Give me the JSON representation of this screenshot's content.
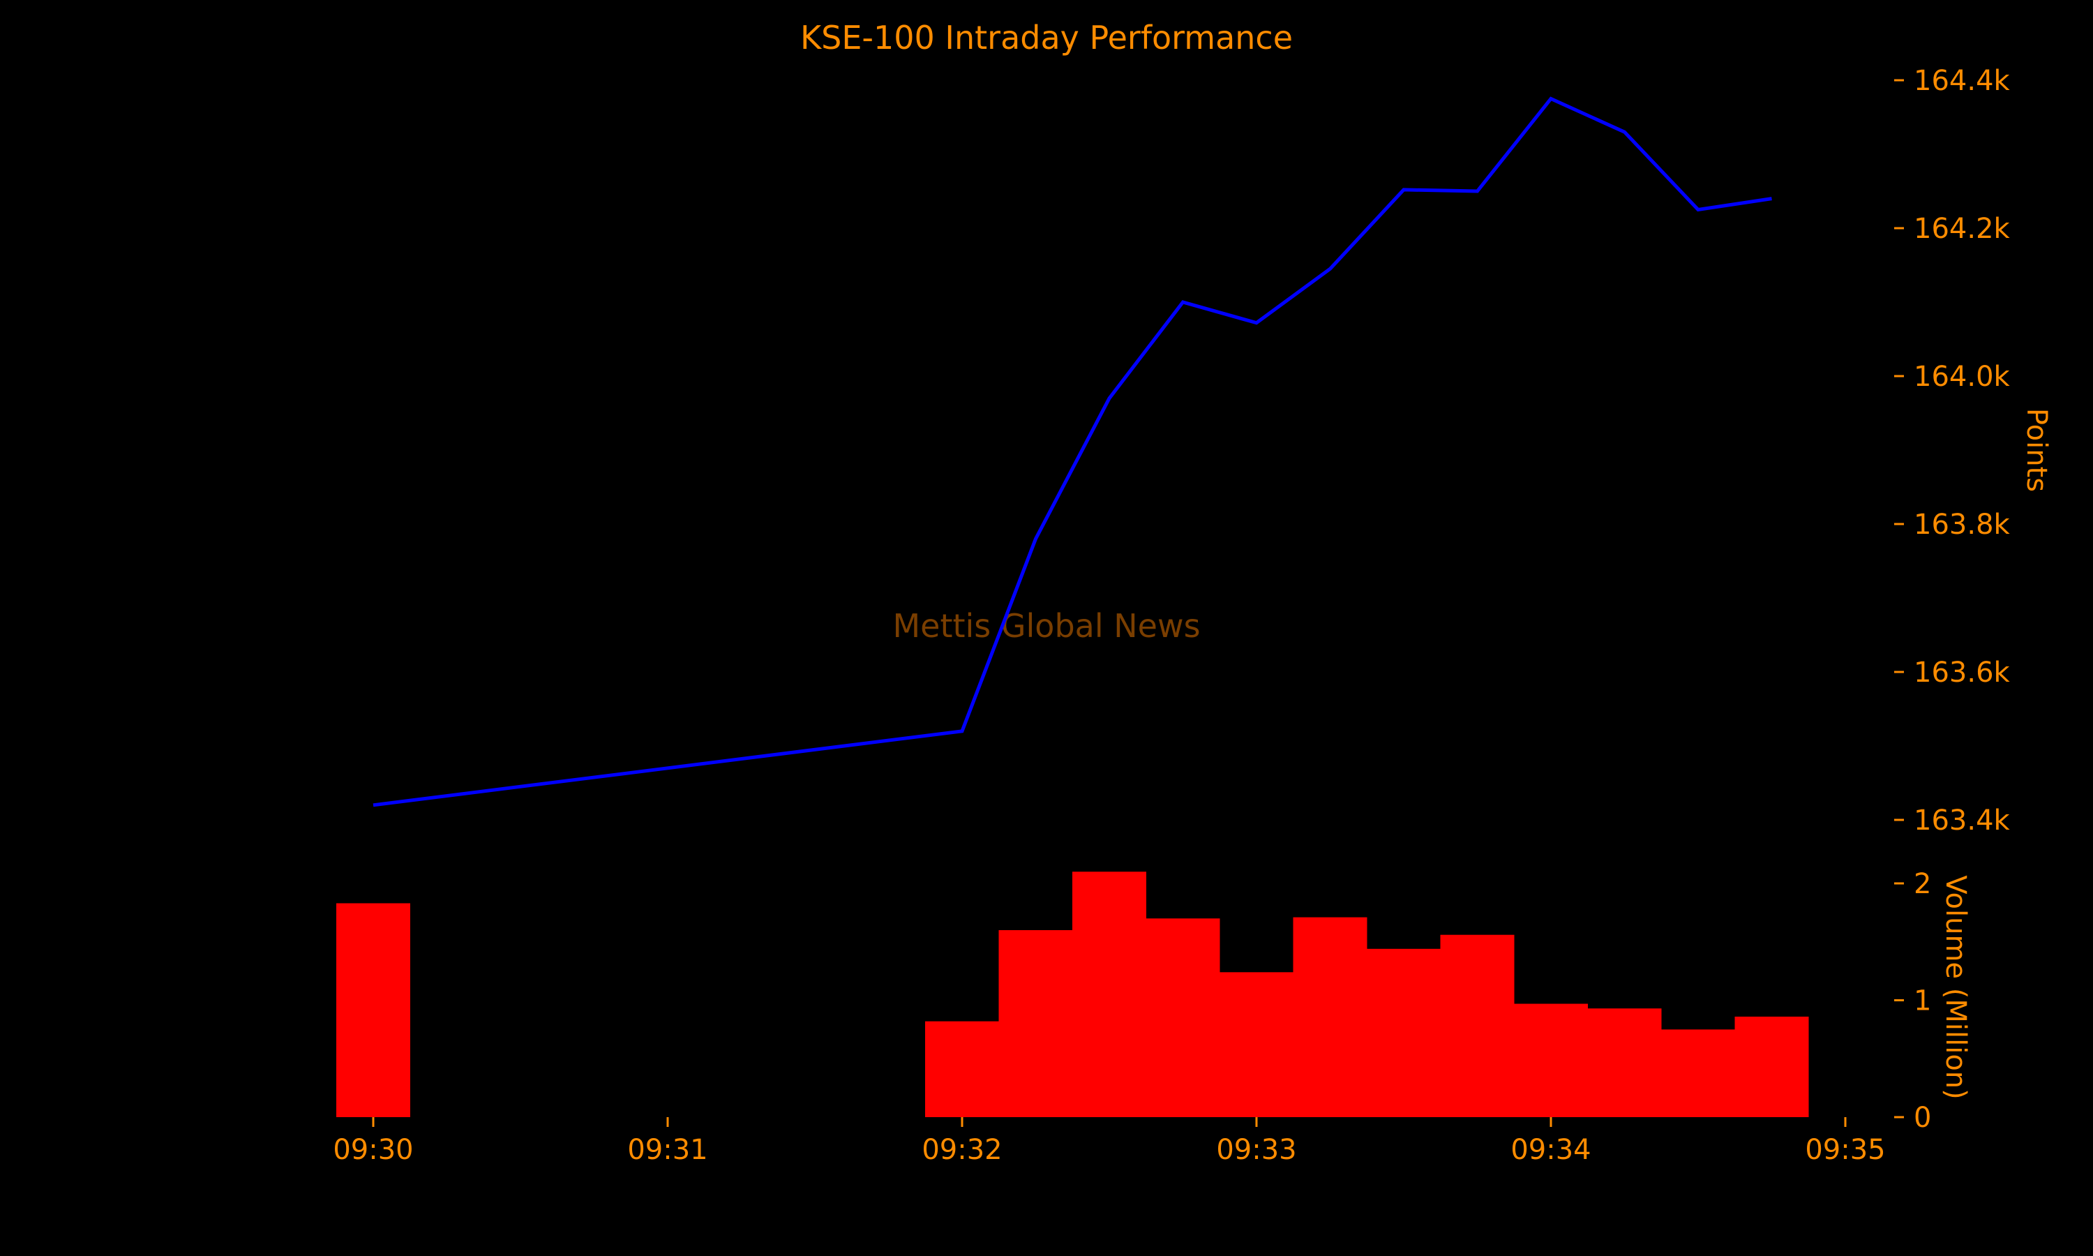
{
  "colors": {
    "background": "#000000",
    "text": "#FF8C00",
    "watermark": "#7A3E00",
    "line": "#0000FF",
    "bars": "#FF0000"
  },
  "chart_data": {
    "type": "line+bar",
    "title": "KSE-100 Intraday Performance",
    "watermark": "Mettis Global News",
    "x_ticks": [
      "09:30",
      "09:31",
      "09:32",
      "09:33",
      "09:34",
      "09:35"
    ],
    "x_range_minutes": [
      0,
      5
    ],
    "points_axis": {
      "label": "Points",
      "range": [
        163400,
        164400
      ],
      "ticks": [
        "164.4k",
        "164.2k",
        "164.0k",
        "163.8k",
        "163.6k",
        "163.4k"
      ],
      "tick_values": [
        164400,
        164200,
        164000,
        163800,
        163600,
        163400
      ]
    },
    "volume_axis": {
      "label": "Volume (Million)",
      "range": [
        0,
        2
      ],
      "ticks": [
        "2",
        "1",
        "0"
      ],
      "tick_values": [
        2,
        1,
        0
      ]
    },
    "series": [
      {
        "type": "line",
        "x_minutes": [
          0,
          2,
          2.25,
          2.5,
          2.75,
          3,
          3.25,
          3.5,
          3.75,
          4,
          4.25,
          4.5,
          4.75
        ],
        "values": [
          163420,
          163520,
          163780,
          163970,
          164100,
          164072,
          164145,
          164252,
          164250,
          164375,
          164330,
          164225,
          164240
        ]
      },
      {
        "type": "bar",
        "x_minutes": [
          0,
          2,
          2.25,
          2.5,
          2.75,
          3,
          3.25,
          3.5,
          3.75,
          4,
          4.25,
          4.5,
          4.75
        ],
        "values": [
          1.83,
          0.82,
          1.6,
          2.1,
          1.7,
          1.24,
          1.71,
          1.44,
          1.56,
          0.97,
          0.93,
          0.75,
          0.86
        ]
      }
    ]
  }
}
